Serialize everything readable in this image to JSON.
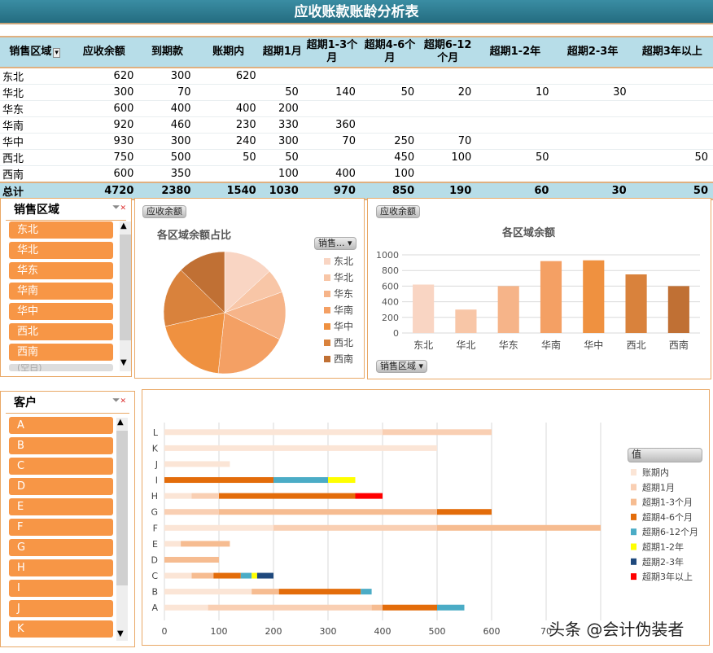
{
  "title": "应收账款账龄分析表",
  "table": {
    "headers": [
      "销售区域",
      "应收余额",
      "到期款",
      "账期内",
      "超期1月",
      "超期1-3个月",
      "超期4-6个月",
      "超期6-12个月",
      "超期1-2年",
      "超期2-3年",
      "超期3年以上"
    ],
    "rows": [
      [
        "东北",
        "620",
        "300",
        "620",
        "",
        "",
        "",
        "",
        "",
        "",
        ""
      ],
      [
        "华北",
        "300",
        "70",
        "",
        "50",
        "140",
        "50",
        "20",
        "10",
        "30",
        ""
      ],
      [
        "华东",
        "600",
        "400",
        "400",
        "200",
        "",
        "",
        "",
        "",
        "",
        ""
      ],
      [
        "华南",
        "920",
        "460",
        "230",
        "330",
        "360",
        "",
        "",
        "",
        "",
        ""
      ],
      [
        "华中",
        "930",
        "300",
        "240",
        "300",
        "70",
        "250",
        "70",
        "",
        "",
        ""
      ],
      [
        "西北",
        "750",
        "500",
        "50",
        "50",
        "",
        "450",
        "100",
        "50",
        "",
        "50"
      ],
      [
        "西南",
        "600",
        "350",
        "",
        "100",
        "400",
        "100",
        "",
        "",
        "",
        ""
      ]
    ],
    "total": [
      "总计",
      "4720",
      "2380",
      "1540",
      "1030",
      "970",
      "850",
      "190",
      "60",
      "30",
      "50"
    ]
  },
  "region_slicer": {
    "title": "销售区域",
    "items": [
      "东北",
      "华北",
      "华东",
      "华南",
      "华中",
      "西北",
      "西南"
    ],
    "partial_item": "(空白)",
    "clear_filter_icon": "filter-clear-icon"
  },
  "customer_slicer": {
    "title": "客户",
    "items": [
      "A",
      "B",
      "C",
      "D",
      "E",
      "F",
      "G",
      "H",
      "I",
      "J",
      "K"
    ],
    "clear_filter_icon": "filter-clear-icon"
  },
  "region_colors": [
    "#f9d5c3",
    "#f8c6a7",
    "#f6b489",
    "#f4a064",
    "#ef9140",
    "#d9823c",
    "#c07034"
  ],
  "pie": {
    "field_button": "应收余额",
    "filter_button": "销售...",
    "chart_data": {
      "type": "pie",
      "title": "各区域余额占比",
      "categories": [
        "东北",
        "华北",
        "华东",
        "华南",
        "华中",
        "西北",
        "西南"
      ],
      "values": [
        620,
        300,
        600,
        920,
        930,
        750,
        600
      ],
      "legend": "right"
    }
  },
  "bar": {
    "field_button": "应收余额",
    "axis_button": "销售区域",
    "chart_data": {
      "type": "bar",
      "title": "各区域余额",
      "categories": [
        "东北",
        "华北",
        "华东",
        "华南",
        "华中",
        "西北",
        "西南"
      ],
      "values": [
        620,
        300,
        600,
        920,
        930,
        750,
        600
      ],
      "ylim": [
        0,
        1000
      ],
      "yticks": [
        "0",
        "200",
        "400",
        "600",
        "800",
        "1000"
      ],
      "grid": true
    }
  },
  "stacked": {
    "legend_title": "值",
    "chart_data": {
      "type": "bar",
      "orientation": "horizontal",
      "stacked": true,
      "categories": [
        "A",
        "B",
        "C",
        "D",
        "E",
        "F",
        "G",
        "H",
        "I",
        "J",
        "K",
        "L"
      ],
      "series": [
        {
          "name": "账期内",
          "color": "#fbe5d6",
          "values": [
            80,
            160,
            50,
            0,
            30,
            200,
            0,
            50,
            0,
            120,
            500,
            400
          ]
        },
        {
          "name": "超期1月",
          "color": "#f9cfb3",
          "values": [
            300,
            0,
            0,
            0,
            0,
            300,
            100,
            50,
            0,
            0,
            0,
            200
          ]
        },
        {
          "name": "超期1-3个月",
          "color": "#f6bc91",
          "values": [
            20,
            50,
            40,
            100,
            90,
            300,
            400,
            0,
            0,
            0,
            0,
            0
          ]
        },
        {
          "name": "超期4-6个月",
          "color": "#e36c0a",
          "values": [
            100,
            150,
            50,
            0,
            0,
            0,
            100,
            250,
            200,
            0,
            0,
            0
          ]
        },
        {
          "name": "超期6-12个月",
          "color": "#4bacc6",
          "values": [
            50,
            20,
            20,
            0,
            0,
            0,
            0,
            0,
            100,
            0,
            0,
            0
          ]
        },
        {
          "name": "超期1-2年",
          "color": "#ffff00",
          "values": [
            0,
            0,
            10,
            0,
            0,
            0,
            0,
            0,
            50,
            0,
            0,
            0
          ]
        },
        {
          "name": "超期2-3年",
          "color": "#1f497d",
          "values": [
            0,
            0,
            30,
            0,
            0,
            0,
            0,
            0,
            0,
            0,
            0,
            0
          ]
        },
        {
          "name": "超期3年以上",
          "color": "#ff0000",
          "values": [
            0,
            0,
            0,
            0,
            0,
            0,
            0,
            50,
            0,
            0,
            0,
            0
          ]
        }
      ],
      "xlim": [
        0,
        800
      ],
      "xticks": [
        "0",
        "100",
        "200",
        "300",
        "400",
        "500",
        "600",
        "70"
      ],
      "grid": true,
      "legend": "right"
    }
  },
  "watermark": "头条 @会计伪装者"
}
